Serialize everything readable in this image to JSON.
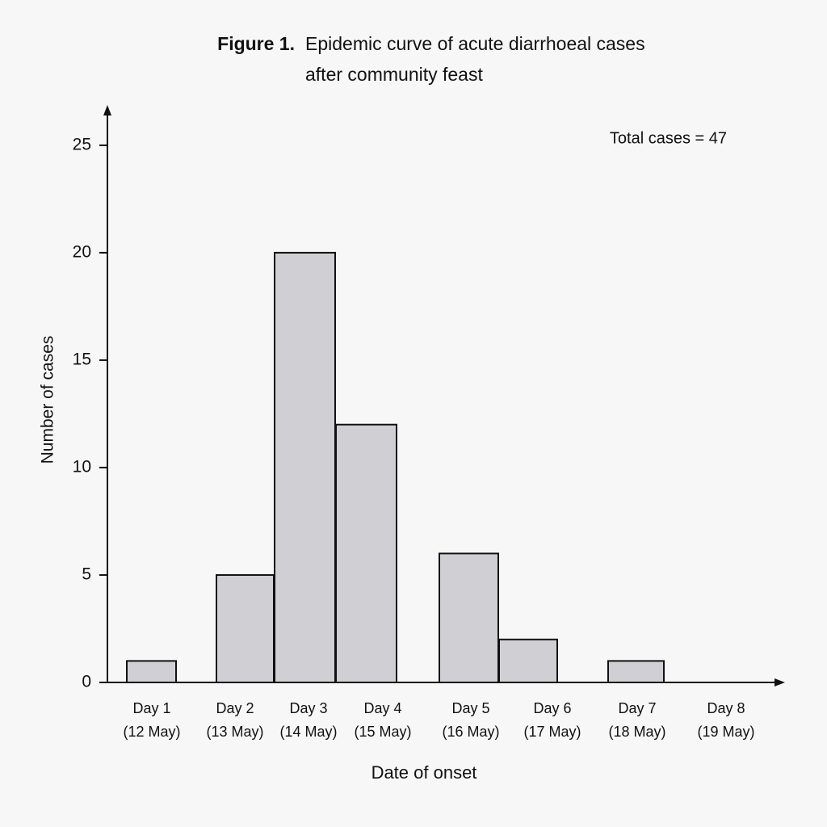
{
  "chart_data": {
    "type": "bar",
    "figure_label": "Figure 1.",
    "title": [
      "Epidemic curve of acute diarrhoeal cases",
      "after community feast"
    ],
    "annotation": "Total cases = 47",
    "x_label": "Date of onset",
    "y_label": "Number of cases",
    "categories": [
      [
        "Day 1",
        "(12 May)"
      ],
      [
        "Day 2",
        "(13 May)"
      ],
      [
        "Day 3",
        "(14 May)"
      ],
      [
        "Day 4",
        "(15 May)"
      ],
      [
        "Day 5",
        "(16 May)"
      ],
      [
        "Day 6",
        "(17 May)"
      ],
      [
        "Day 7",
        "(18 May)"
      ],
      [
        "Day 8",
        "(19 May)"
      ]
    ],
    "values": [
      1,
      5,
      20,
      12,
      6,
      2,
      1,
      0
    ],
    "color": "#d0d0d4",
    "ylim": [
      0,
      26.8
    ],
    "yticks": [
      0,
      5,
      10,
      15,
      20,
      25
    ]
  }
}
